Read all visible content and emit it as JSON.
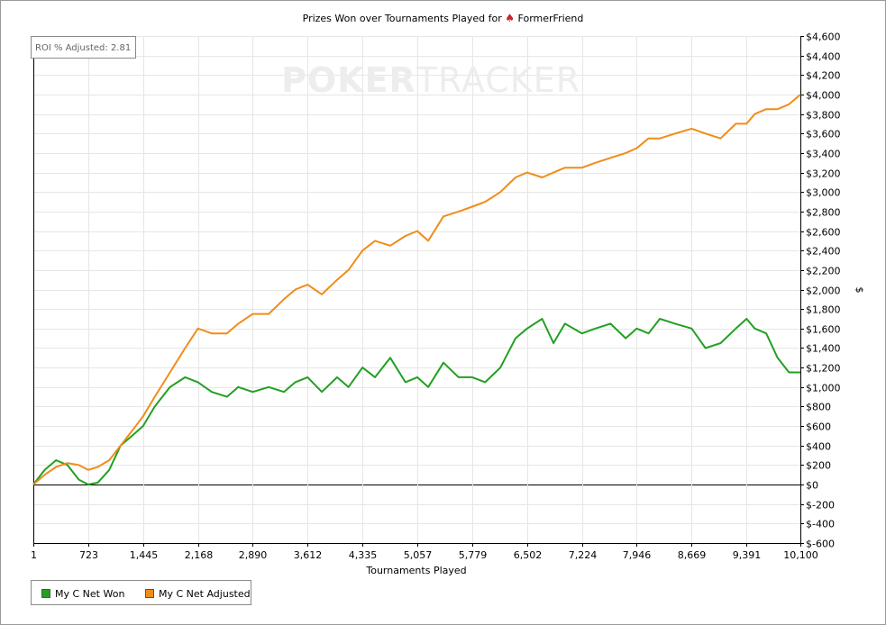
{
  "title_prefix": "Prizes Won over Tournaments Played for",
  "title_player": "FormerFriend",
  "roi_label": "ROI % Adjusted: 2.81",
  "watermark": {
    "bold": "POKER",
    "light": "TRACKER"
  },
  "legend": [
    {
      "label": "My C Net Won",
      "color": "#22a022"
    },
    {
      "label": "My C Net Adjusted",
      "color": "#f08c1a"
    }
  ],
  "chart_data": {
    "type": "line",
    "xlabel": "Tournaments Played",
    "ylabel": "$",
    "xlim": [
      1,
      10100
    ],
    "ylim": [
      -600,
      4600
    ],
    "x_ticks": [
      1,
      723,
      1445,
      2168,
      2890,
      3612,
      4335,
      5057,
      5779,
      6502,
      7224,
      7946,
      8669,
      9391,
      10100
    ],
    "x_tick_labels": [
      "1",
      "723",
      "1,445",
      "2,168",
      "2,890",
      "3,612",
      "4,335",
      "5,057",
      "5,779",
      "6,502",
      "7,224",
      "7,946",
      "8,669",
      "9,391",
      "10,100"
    ],
    "y_ticks": [
      4600,
      4400,
      4200,
      4000,
      3800,
      3600,
      3400,
      3200,
      3000,
      2800,
      2600,
      2400,
      2200,
      2000,
      1800,
      1600,
      1400,
      1200,
      1000,
      800,
      600,
      400,
      200,
      0,
      -200,
      -400,
      -600
    ],
    "y_tick_labels": [
      "$4,600",
      "$4,400",
      "$4,200",
      "$4,000",
      "$3,800",
      "$3,600",
      "$3,400",
      "$3,200",
      "$3,000",
      "$2,800",
      "$2,600",
      "$2,400",
      "$2,200",
      "$2,000",
      "$1,800",
      "$1,600",
      "$1,400",
      "$1,200",
      "$1,000",
      "$800",
      "$600",
      "$400",
      "$200",
      "$0",
      "$-200",
      "$-400",
      "$-600"
    ],
    "grid": true,
    "legend_position": "bottom-left",
    "series": [
      {
        "name": "My C Net Won",
        "color": "#22a022",
        "x": [
          1,
          150,
          300,
          450,
          600,
          723,
          850,
          1000,
          1150,
          1300,
          1445,
          1600,
          1800,
          2000,
          2168,
          2350,
          2550,
          2700,
          2890,
          3100,
          3300,
          3450,
          3612,
          3800,
          4000,
          4150,
          4335,
          4500,
          4700,
          4900,
          5057,
          5200,
          5400,
          5600,
          5779,
          5950,
          6150,
          6350,
          6502,
          6700,
          6850,
          7000,
          7224,
          7400,
          7600,
          7800,
          7946,
          8100,
          8250,
          8450,
          8669,
          8850,
          9050,
          9250,
          9391,
          9500,
          9650,
          9800,
          9950,
          10100
        ],
        "values": [
          0,
          150,
          250,
          200,
          50,
          0,
          20,
          150,
          400,
          500,
          600,
          800,
          1000,
          1100,
          1050,
          950,
          900,
          1000,
          950,
          1000,
          950,
          1050,
          1100,
          950,
          1100,
          1000,
          1200,
          1100,
          1300,
          1050,
          1100,
          1000,
          1250,
          1100,
          1100,
          1050,
          1200,
          1500,
          1600,
          1700,
          1450,
          1650,
          1550,
          1600,
          1650,
          1500,
          1600,
          1550,
          1700,
          1650,
          1600,
          1400,
          1450,
          1600,
          1700,
          1600,
          1550,
          1300,
          1150,
          1150
        ]
      },
      {
        "name": "My C Net Adjusted",
        "color": "#f08c1a",
        "x": [
          1,
          150,
          300,
          450,
          600,
          723,
          850,
          1000,
          1150,
          1300,
          1445,
          1600,
          1800,
          2000,
          2168,
          2350,
          2550,
          2700,
          2890,
          3100,
          3300,
          3450,
          3612,
          3800,
          4000,
          4150,
          4335,
          4500,
          4700,
          4900,
          5057,
          5200,
          5400,
          5600,
          5779,
          5950,
          6150,
          6350,
          6502,
          6700,
          6850,
          7000,
          7224,
          7400,
          7600,
          7800,
          7946,
          8100,
          8250,
          8450,
          8669,
          8850,
          9050,
          9250,
          9391,
          9500,
          9650,
          9800,
          9950,
          10100
        ],
        "values": [
          0,
          100,
          180,
          220,
          200,
          150,
          180,
          250,
          400,
          550,
          700,
          900,
          1150,
          1400,
          1600,
          1550,
          1550,
          1650,
          1750,
          1750,
          1900,
          2000,
          2050,
          1950,
          2100,
          2200,
          2400,
          2500,
          2450,
          2550,
          2600,
          2500,
          2750,
          2800,
          2850,
          2900,
          3000,
          3150,
          3200,
          3150,
          3200,
          3250,
          3250,
          3300,
          3350,
          3400,
          3450,
          3550,
          3550,
          3600,
          3650,
          3600,
          3550,
          3700,
          3700,
          3800,
          3850,
          3850,
          3900,
          4000
        ]
      }
    ]
  }
}
